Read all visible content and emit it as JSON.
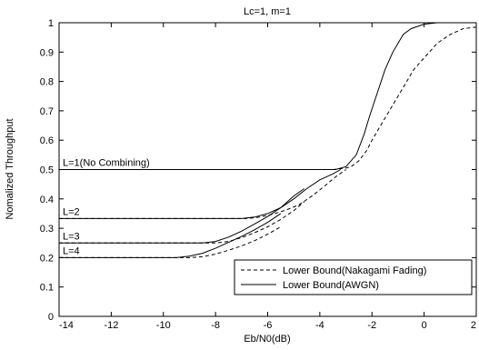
{
  "chart_data": {
    "type": "line",
    "title": "Lc=1, m=1",
    "xlabel": "Eb/N0(dB)",
    "ylabel": "Nomalized Throughput",
    "xlim": [
      -14,
      2
    ],
    "ylim": [
      0,
      1
    ],
    "xticks": [
      "-14",
      "-12",
      "-10",
      "-8",
      "-6",
      "-4",
      "-2",
      "0",
      "2"
    ],
    "yticks": [
      "0",
      "0.1",
      "0.2",
      "0.3",
      "0.4",
      "0.5",
      "0.6",
      "0.7",
      "0.8",
      "0.9",
      "1"
    ],
    "grid": false,
    "legend_position": "bottom-right",
    "legend": [
      {
        "label": "Lower Bound(Nakagami Fading)",
        "style": "dashed"
      },
      {
        "label": "Lower Bound(AWGN)",
        "style": "solid"
      }
    ],
    "annotations": [
      {
        "text": "L=1(No Combining)",
        "x": -14,
        "y": 0.5
      },
      {
        "text": "L=2",
        "x": -14,
        "y": 0.333
      },
      {
        "text": "L=3",
        "x": -14,
        "y": 0.25
      },
      {
        "text": "L=4",
        "x": -14,
        "y": 0.2
      }
    ],
    "series": [
      {
        "group": "L=1",
        "style": "solid",
        "x": [
          -14,
          -4,
          -3.4,
          -3,
          -2.6,
          -2.3,
          -2.1,
          -1.8,
          -1.5,
          -1.2,
          -1.0,
          -0.8,
          -0.5,
          0,
          0.5,
          1,
          2
        ],
        "y": [
          0.5,
          0.5,
          0.5,
          0.51,
          0.55,
          0.62,
          0.68,
          0.76,
          0.84,
          0.9,
          0.93,
          0.96,
          0.98,
          0.995,
          1.0,
          1.0,
          1.0
        ]
      },
      {
        "group": "L=1",
        "style": "dashed",
        "x": [
          -14,
          -4,
          -3.5,
          -3,
          -2.8,
          -2.5,
          -2.2,
          -2,
          -1.6,
          -1.2,
          -0.8,
          -0.4,
          0,
          0.5,
          1,
          1.5,
          2
        ],
        "y": [
          0.5,
          0.5,
          0.5,
          0.505,
          0.51,
          0.53,
          0.565,
          0.6,
          0.66,
          0.72,
          0.78,
          0.84,
          0.88,
          0.93,
          0.96,
          0.98,
          0.985
        ]
      },
      {
        "group": "L=2",
        "style": "solid",
        "x": [
          -14,
          -7.0,
          -6.5,
          -6.0,
          -5.5,
          -5.0,
          -4.5,
          -4.0,
          -3.5,
          -3.2
        ],
        "y": [
          0.333,
          0.333,
          0.338,
          0.35,
          0.37,
          0.4,
          0.435,
          0.465,
          0.485,
          0.5
        ]
      },
      {
        "group": "L=2",
        "style": "dashed",
        "x": [
          -14,
          -6.8,
          -6.3,
          -5.8,
          -5.3,
          -4.8,
          -4.3,
          -3.8,
          -3.4,
          -3.0
        ],
        "y": [
          0.333,
          0.333,
          0.338,
          0.348,
          0.362,
          0.38,
          0.41,
          0.445,
          0.475,
          0.5
        ]
      },
      {
        "group": "L=3",
        "style": "solid",
        "x": [
          -14,
          -8.5,
          -8.0,
          -7.5,
          -7.0,
          -6.5,
          -6.0,
          -5.5,
          -5.0,
          -4.6
        ],
        "y": [
          0.25,
          0.25,
          0.255,
          0.27,
          0.29,
          0.315,
          0.34,
          0.37,
          0.41,
          0.435
        ]
      },
      {
        "group": "L=3",
        "style": "dashed",
        "x": [
          -14,
          -8.0,
          -7.5,
          -7.0,
          -6.5,
          -6.0,
          -5.5,
          -5.0,
          -4.6
        ],
        "y": [
          0.25,
          0.25,
          0.255,
          0.268,
          0.285,
          0.305,
          0.33,
          0.36,
          0.39
        ]
      },
      {
        "group": "L=4",
        "style": "solid",
        "x": [
          -14,
          -9.5,
          -9.0,
          -8.5,
          -8.0,
          -7.5,
          -7.0,
          -6.5,
          -6.0,
          -5.5
        ],
        "y": [
          0.2,
          0.2,
          0.205,
          0.215,
          0.232,
          0.252,
          0.272,
          0.295,
          0.32,
          0.35
        ]
      },
      {
        "group": "L=4",
        "style": "dashed",
        "x": [
          -14,
          -9.0,
          -8.5,
          -8.0,
          -7.5,
          -7.0,
          -6.5,
          -6.0,
          -5.5
        ],
        "y": [
          0.2,
          0.2,
          0.203,
          0.212,
          0.225,
          0.24,
          0.258,
          0.28,
          0.305
        ]
      }
    ]
  }
}
